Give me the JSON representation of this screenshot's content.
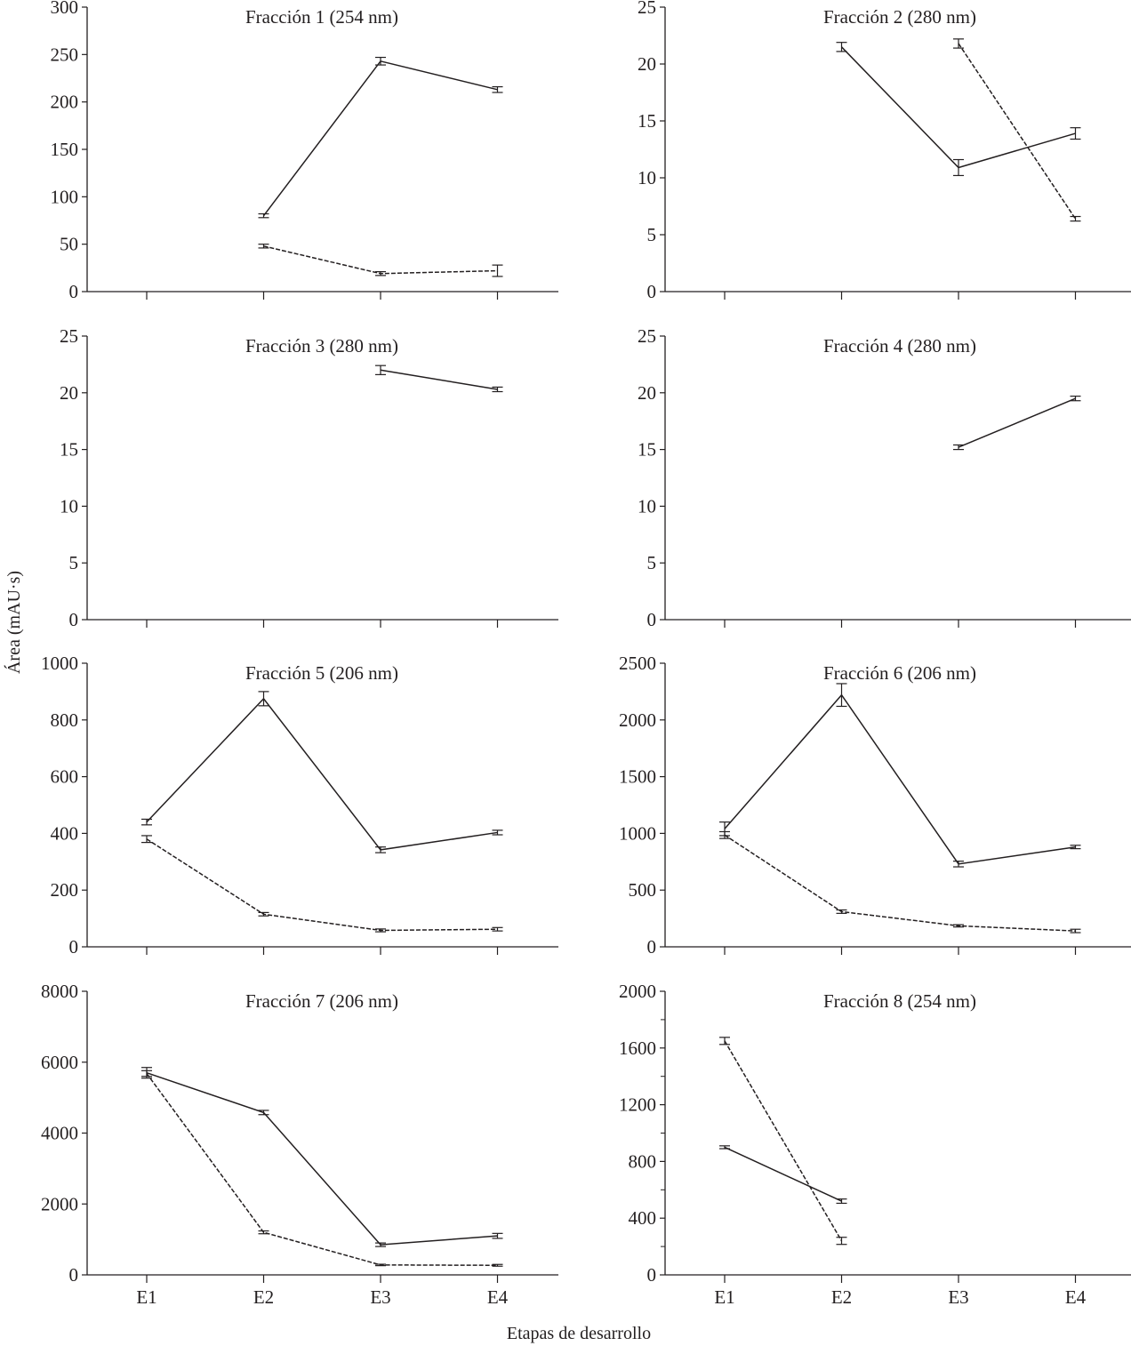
{
  "chart_data": {
    "type": "line",
    "ylabel": "Área (mAU·s)",
    "xlabel": "Etapas de desarrollo",
    "categories": [
      "E1",
      "E2",
      "E3",
      "E4"
    ],
    "panels": [
      {
        "title": "Fracción 1 (254 nm)",
        "ylim": [
          0,
          300
        ],
        "yticks": [
          0,
          50,
          100,
          150,
          200,
          250,
          300
        ],
        "minor_ticks": [],
        "series": [
          {
            "style": "solid",
            "values": [
              null,
              80,
              243,
              213
            ],
            "errors": [
              null,
              2,
              4,
              3
            ]
          },
          {
            "style": "dashed",
            "values": [
              null,
              48,
              19,
              22
            ],
            "errors": [
              null,
              2,
              2,
              6
            ]
          }
        ]
      },
      {
        "title": "Fracción 2 (280 nm)",
        "ylim": [
          0,
          25
        ],
        "yticks": [
          0,
          5,
          10,
          15,
          20,
          25
        ],
        "minor_ticks": [],
        "series": [
          {
            "style": "solid",
            "values": [
              null,
              21.5,
              10.9,
              13.9
            ],
            "errors": [
              null,
              0.4,
              0.7,
              0.5
            ]
          },
          {
            "style": "dashed",
            "values": [
              null,
              null,
              21.8,
              6.4
            ],
            "errors": [
              null,
              null,
              0.4,
              0.2
            ]
          }
        ]
      },
      {
        "title": "Fracción 3 (280 nm)",
        "ylim": [
          0,
          25
        ],
        "yticks": [
          0,
          5,
          10,
          15,
          20,
          25
        ],
        "minor_ticks": [],
        "series": [
          {
            "style": "solid",
            "values": [
              null,
              null,
              22.0,
              20.3
            ],
            "errors": [
              null,
              null,
              0.4,
              0.2
            ]
          }
        ]
      },
      {
        "title": "Fracción 4 (280 nm)",
        "ylim": [
          0,
          25
        ],
        "yticks": [
          0,
          5,
          10,
          15,
          20,
          25
        ],
        "minor_ticks": [],
        "series": [
          {
            "style": "solid",
            "values": [
              null,
              null,
              15.2,
              19.5
            ],
            "errors": [
              null,
              null,
              0.2,
              0.2
            ]
          }
        ]
      },
      {
        "title": "Fracción 5 (206 nm)",
        "ylim": [
          0,
          1000
        ],
        "yticks": [
          0,
          200,
          400,
          600,
          800,
          1000
        ],
        "minor_ticks": [],
        "series": [
          {
            "style": "solid",
            "values": [
              440,
              875,
              342,
              403
            ],
            "errors": [
              10,
              25,
              10,
              8
            ]
          },
          {
            "style": "dashed",
            "values": [
              380,
              115,
              58,
              62
            ],
            "errors": [
              12,
              6,
              5,
              6
            ]
          }
        ]
      },
      {
        "title": "Fracción 6 (206 nm)",
        "ylim": [
          0,
          2500
        ],
        "yticks": [
          0,
          500,
          1000,
          1500,
          2000,
          2500
        ],
        "minor_ticks": [],
        "series": [
          {
            "style": "solid",
            "values": [
              1040,
              2220,
              730,
              880
            ],
            "errors": [
              60,
              100,
              25,
              15
            ]
          },
          {
            "style": "dashed",
            "values": [
              985,
              310,
              185,
              140
            ],
            "errors": [
              30,
              15,
              10,
              15
            ]
          }
        ]
      },
      {
        "title": "Fracción 7 (206 nm)",
        "ylim": [
          0,
          8000
        ],
        "yticks": [
          0,
          2000,
          4000,
          6000,
          8000
        ],
        "minor_ticks": [],
        "series": [
          {
            "style": "solid",
            "values": [
              5700,
              4580,
              850,
              1100
            ],
            "errors": [
              150,
              60,
              50,
              70
            ]
          },
          {
            "style": "dashed",
            "values": [
              5680,
              1200,
              280,
              270
            ],
            "errors": [
              80,
              40,
              20,
              25
            ]
          }
        ]
      },
      {
        "title": "Fracción 8 (254 nm)",
        "ylim": [
          0,
          2000
        ],
        "yticks": [
          0,
          400,
          800,
          1200,
          1600,
          2000
        ],
        "minor_ticks": [
          200,
          600,
          1000,
          1400,
          1800
        ],
        "series": [
          {
            "style": "solid",
            "values": [
              900,
              520,
              null,
              null
            ],
            "errors": [
              10,
              15,
              null,
              null
            ]
          },
          {
            "style": "dashed",
            "values": [
              1650,
              240,
              null,
              null
            ],
            "errors": [
              25,
              25,
              null,
              null
            ]
          }
        ]
      }
    ]
  }
}
